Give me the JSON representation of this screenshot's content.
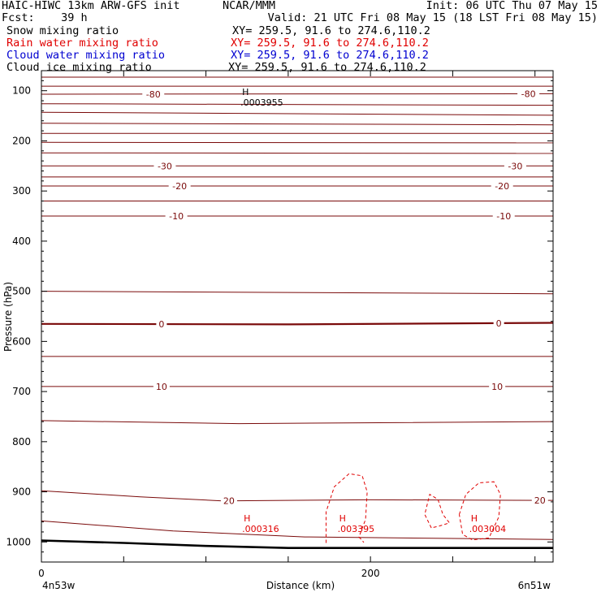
{
  "header": {
    "title_left": "HAIC-HIWC 13km ARW-GFS init",
    "org": "NCAR/MMM",
    "init": "Init: 06 UTC Thu 07 May 15",
    "fcst": "Fcst:    39 h",
    "valid": "Valid: 21 UTC Fri 08 May 15 (18 LST Fri 08 May 15)"
  },
  "legend": [
    {
      "label": "Snow mixing ratio",
      "xy": "XY= 259.5, 91.6 to 274.6,110.2",
      "color": "#000000"
    },
    {
      "label": "Rain water mixing ratio",
      "xy": "XY= 259.5, 91.6 to 274.6,110.2",
      "color": "#e00000"
    },
    {
      "label": "Cloud water mixing ratio",
      "xy": "XY= 259.5, 91.6 to 274.6,110.2",
      "color": "#0000d0"
    },
    {
      "label": "Cloud ice mixing ratio",
      "xy": "XY= 259.5, 91.6 to 274.6,110.2",
      "color": "#000000"
    }
  ],
  "chart_data": {
    "type": "line",
    "ylabel": "Pressure (hPa)",
    "xlabel": "Distance (km)",
    "x_start_label": "4n53w",
    "x_end_label": "6n51w",
    "xlim": [
      0,
      311
    ],
    "ylim": [
      1040,
      60
    ],
    "y_ticks": [
      100,
      200,
      300,
      400,
      500,
      600,
      700,
      800,
      900,
      1000
    ],
    "x_ticks": [
      0,
      200
    ],
    "x_minor_ticks": [
      0,
      50,
      100,
      150,
      200,
      250,
      300
    ],
    "colors": {
      "isotherm": "#7a0a0a",
      "rain": "#e00000",
      "snow": "#000000",
      "ground": "#000000"
    },
    "isotherms": [
      {
        "pts": [
          [
            0,
            73
          ],
          [
            311,
            73
          ]
        ],
        "label": "",
        "w": 1
      },
      {
        "pts": [
          [
            0,
            91
          ],
          [
            311,
            91
          ]
        ],
        "label": "",
        "w": 1
      },
      {
        "pts": [
          [
            0,
            107
          ],
          [
            311,
            106
          ]
        ],
        "label": "-80",
        "w": 1,
        "labels_at": [
          68,
          296
        ]
      },
      {
        "pts": [
          [
            0,
            126
          ],
          [
            311,
            129
          ]
        ],
        "label": "",
        "w": 1
      },
      {
        "pts": [
          [
            0,
            143
          ],
          [
            311,
            149
          ]
        ],
        "label": "",
        "w": 1
      },
      {
        "pts": [
          [
            0,
            165
          ],
          [
            311,
            168
          ]
        ],
        "label": "",
        "w": 1
      },
      {
        "pts": [
          [
            0,
            185
          ],
          [
            311,
            185
          ]
        ],
        "label": "",
        "w": 1
      },
      {
        "pts": [
          [
            0,
            203
          ],
          [
            311,
            204
          ]
        ],
        "label": "",
        "w": 1
      },
      {
        "pts": [
          [
            0,
            224
          ],
          [
            311,
            225
          ]
        ],
        "label": "",
        "w": 1
      },
      {
        "pts": [
          [
            0,
            250
          ],
          [
            311,
            250
          ]
        ],
        "label": "-30",
        "w": 1,
        "labels_at": [
          75,
          288
        ]
      },
      {
        "pts": [
          [
            0,
            272
          ],
          [
            311,
            272
          ]
        ],
        "label": "",
        "w": 1
      },
      {
        "pts": [
          [
            0,
            290
          ],
          [
            311,
            290
          ]
        ],
        "label": "-20",
        "w": 1,
        "labels_at": [
          84,
          280
        ]
      },
      {
        "pts": [
          [
            0,
            320
          ],
          [
            311,
            320
          ]
        ],
        "label": "",
        "w": 1
      },
      {
        "pts": [
          [
            0,
            350
          ],
          [
            311,
            350
          ]
        ],
        "label": "-10",
        "w": 1,
        "labels_at": [
          82,
          281
        ]
      },
      {
        "pts": [
          [
            0,
            500
          ],
          [
            311,
            505
          ]
        ],
        "label": "",
        "w": 1
      },
      {
        "pts": [
          [
            0,
            565
          ],
          [
            150,
            566
          ],
          [
            311,
            563
          ]
        ],
        "label": "0",
        "w": 2.2,
        "labels_at": [
          73,
          278
        ]
      },
      {
        "pts": [
          [
            0,
            630
          ],
          [
            311,
            630
          ]
        ],
        "label": "",
        "w": 1
      },
      {
        "pts": [
          [
            0,
            690
          ],
          [
            311,
            690
          ]
        ],
        "label": "10",
        "w": 1,
        "labels_at": [
          73,
          277
        ]
      },
      {
        "pts": [
          [
            0,
            758
          ],
          [
            120,
            764
          ],
          [
            311,
            760
          ]
        ],
        "label": "",
        "w": 1
      },
      {
        "pts": [
          [
            0,
            898
          ],
          [
            60,
            910
          ],
          [
            110,
            918
          ],
          [
            200,
            916
          ],
          [
            311,
            917
          ]
        ],
        "label": "20",
        "w": 1,
        "labels_at": [
          114,
          303
        ]
      },
      {
        "pts": [
          [
            0,
            958
          ],
          [
            80,
            978
          ],
          [
            160,
            990
          ],
          [
            311,
            995
          ]
        ],
        "label": "",
        "w": 1
      }
    ],
    "ground": [
      [
        0,
        997
      ],
      [
        50,
        1002
      ],
      [
        100,
        1008
      ],
      [
        150,
        1012
      ],
      [
        311,
        1012
      ]
    ],
    "rain_contours": [
      [
        [
          173,
          1002
        ],
        [
          173,
          940
        ],
        [
          178,
          890
        ],
        [
          187,
          864
        ],
        [
          195,
          868
        ],
        [
          198,
          900
        ],
        [
          197,
          955
        ],
        [
          193,
          990
        ],
        [
          196,
          1001
        ]
      ],
      [
        [
          237,
          972
        ],
        [
          233,
          945
        ],
        [
          236,
          905
        ],
        [
          241,
          915
        ],
        [
          244,
          945
        ],
        [
          248,
          962
        ],
        [
          242,
          968
        ],
        [
          237,
          972
        ]
      ],
      [
        [
          254,
          945
        ],
        [
          258,
          905
        ],
        [
          266,
          882
        ],
        [
          275,
          880
        ],
        [
          279,
          905
        ],
        [
          278,
          950
        ],
        [
          272,
          992
        ],
        [
          262,
          996
        ],
        [
          256,
          985
        ],
        [
          254,
          945
        ]
      ]
    ],
    "maxima": [
      {
        "x": 121,
        "p": 112,
        "symbol": "H",
        "value": ".0003955",
        "kind": "snow"
      },
      {
        "x": 122,
        "p": 962,
        "symbol": "H",
        "value": ".000316",
        "kind": "rain"
      },
      {
        "x": 180,
        "p": 962,
        "symbol": "H",
        "value": ".003395",
        "kind": "rain"
      },
      {
        "x": 260,
        "p": 962,
        "symbol": "H",
        "value": ".003004",
        "kind": "rain"
      }
    ]
  }
}
